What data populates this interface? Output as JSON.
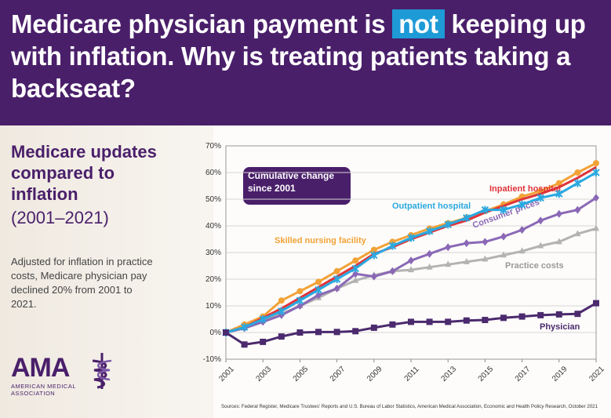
{
  "header": {
    "title_start": "Medicare physician payment is",
    "title_highlight": "not",
    "title_end": "keeping up with inflation. Why is treating patients taking a backseat?"
  },
  "panel": {
    "subtitle": "Medicare updates compared to inflation",
    "years": "(2001–2021)",
    "note": "Adjusted for inflation in practice costs, Medicare physician pay declined 20% from 2001 to 2021.",
    "logo": "AMA",
    "logo_sub": "AMERICAN MEDICAL ASSOCIATION"
  },
  "chart_data": {
    "type": "line",
    "annotation": "Cumulative change since 2001",
    "source": "Sources: Federal Register, Medicare Trustees' Reports and U.S. Bureau of Labor Statistics, American Medical Association, Economic and Health Policy Research, October 2021",
    "x": [
      2001,
      2002,
      2003,
      2004,
      2005,
      2006,
      2007,
      2008,
      2009,
      2010,
      2011,
      2012,
      2013,
      2014,
      2015,
      2016,
      2017,
      2018,
      2019,
      2020,
      2021
    ],
    "xlim": [
      2001,
      2021
    ],
    "xticks": [
      2001,
      2003,
      2005,
      2007,
      2009,
      2011,
      2013,
      2015,
      2017,
      2019,
      2021
    ],
    "ylim": [
      -10,
      70
    ],
    "yticks": [
      {
        "value": -10,
        "label": "-10%"
      },
      {
        "value": 0,
        "label": "0%"
      },
      {
        "value": 10,
        "label": "10%"
      },
      {
        "value": 20,
        "label": "20%"
      },
      {
        "value": 30,
        "label": "30%"
      },
      {
        "value": 40,
        "label": "40%"
      },
      {
        "value": 50,
        "label": "50%"
      },
      {
        "value": 60,
        "label": "60%"
      },
      {
        "value": 70,
        "label": "70%"
      }
    ],
    "series": [
      {
        "name": "Practice costs",
        "color": "#b3b3b3",
        "marker": "triangle",
        "values": [
          0,
          2,
          4.5,
          7,
          10,
          13,
          16.5,
          19.5,
          21.5,
          23,
          23.5,
          24.5,
          25.5,
          26.5,
          27.5,
          29,
          30.5,
          32.5,
          34,
          37,
          39
        ]
      },
      {
        "name": "Consumer prices",
        "color": "#8a68b6",
        "marker": "diamond",
        "values": [
          0,
          1.6,
          4,
          6.5,
          10,
          14,
          16.5,
          22,
          21,
          23,
          27,
          29.5,
          32,
          33.5,
          34,
          36,
          38.5,
          42,
          44.5,
          46,
          50.5
        ]
      },
      {
        "name": "Skilled nursing facility",
        "color": "#f2a236",
        "marker": "circle",
        "values": [
          0,
          3,
          6,
          12,
          15.5,
          19,
          23,
          27,
          31,
          34,
          36.5,
          39,
          41,
          43,
          45.5,
          48,
          51,
          53,
          56,
          60,
          63.5
        ]
      },
      {
        "name": "Inpatient hospital",
        "color": "#e0333a",
        "marker": "none",
        "values": [
          0,
          2,
          5.5,
          9,
          13,
          17,
          21,
          25,
          29.5,
          32,
          35,
          37.5,
          40,
          42,
          45,
          47.5,
          50,
          52,
          54.5,
          58,
          62
        ]
      },
      {
        "name": "Outpatient hospital",
        "color": "#2aa8e0",
        "marker": "x",
        "values": [
          0,
          2,
          5,
          8,
          12,
          16,
          20,
          24,
          29,
          32.5,
          35.5,
          38,
          40.5,
          43,
          46,
          46,
          48,
          50.5,
          52,
          56,
          60
        ]
      },
      {
        "name": "Physician",
        "color": "#4b2a6e",
        "marker": "square",
        "values": [
          0,
          -4.5,
          -3.5,
          -1.5,
          0,
          0.2,
          0.2,
          0.5,
          1.8,
          3,
          4,
          4,
          4,
          4.5,
          4.7,
          5.5,
          6,
          6.5,
          6.8,
          7,
          11
        ]
      }
    ]
  }
}
